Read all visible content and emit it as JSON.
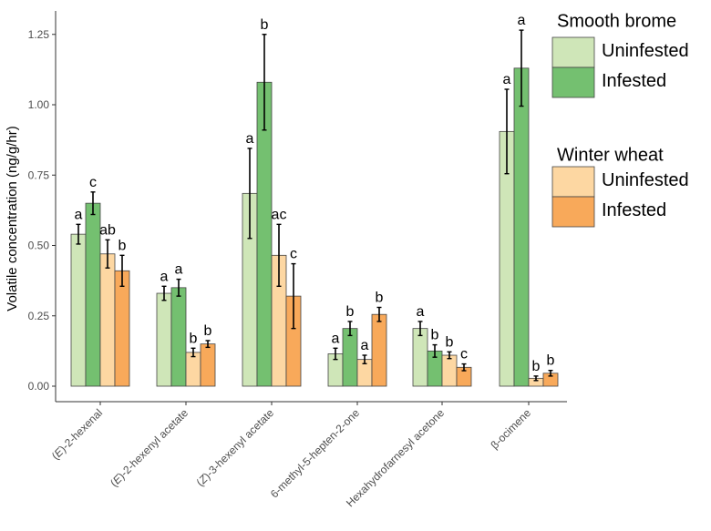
{
  "chart_data": {
    "type": "bar",
    "title": "",
    "xlabel": "",
    "ylabel": "Volatile concentration (ng/g/hr)",
    "ylim": [
      -0.06,
      1.35
    ],
    "yticks": [
      0.0,
      0.25,
      0.5,
      0.75,
      1.0,
      1.25
    ],
    "ytick_labels": [
      "0.00",
      "0.25",
      "0.50",
      "0.75",
      "1.00",
      "1.25"
    ],
    "grid": false,
    "categories": [
      {
        "prefix": "(",
        "italic": "E",
        "suffix": ")-2-hexenal"
      },
      {
        "prefix": "(",
        "italic": "E",
        "suffix": ")-2-hexenyl acetate"
      },
      {
        "prefix": "(",
        "italic": "Z",
        "suffix": ")-3-hexenyl acetate"
      },
      {
        "prefix": "",
        "italic": "",
        "suffix": "6-methyl-5-hepten-2-one"
      },
      {
        "prefix": "",
        "italic": "",
        "suffix": "Hexahydrofarnesyl acetone"
      },
      {
        "prefix": "",
        "italic": "",
        "suffix": "β-ocimene"
      }
    ],
    "series": [
      {
        "name": "Smooth brome Uninfested",
        "color": "#cfe6b8",
        "values": [
          0.54,
          0.33,
          0.685,
          0.115,
          0.205,
          0.905
        ],
        "errors": [
          0.035,
          0.025,
          0.16,
          0.02,
          0.025,
          0.15
        ],
        "letters": [
          "a",
          "a",
          "a",
          "a",
          "a",
          "a"
        ]
      },
      {
        "name": "Smooth brome Infested",
        "color": "#74c070",
        "values": [
          0.65,
          0.35,
          1.08,
          0.205,
          0.125,
          1.13
        ],
        "errors": [
          0.04,
          0.03,
          0.17,
          0.025,
          0.022,
          0.135
        ],
        "letters": [
          "c",
          "a",
          "b",
          "b",
          "b",
          "a"
        ]
      },
      {
        "name": "Winter wheat Uninfested",
        "color": "#fdd7a2",
        "values": [
          0.47,
          0.12,
          0.465,
          0.095,
          0.11,
          0.028
        ],
        "errors": [
          0.05,
          0.015,
          0.11,
          0.015,
          0.012,
          0.008
        ],
        "letters": [
          "ab",
          "b",
          "ac",
          "a",
          "b",
          "b"
        ]
      },
      {
        "name": "Winter wheat Infested",
        "color": "#f8a95a",
        "values": [
          0.41,
          0.15,
          0.32,
          0.255,
          0.067,
          0.046
        ],
        "errors": [
          0.055,
          0.012,
          0.115,
          0.025,
          0.012,
          0.01
        ],
        "letters": [
          "b",
          "b",
          "c",
          "b",
          "c",
          "b"
        ]
      }
    ],
    "legend": {
      "position": "right",
      "groups": [
        {
          "title": "Smooth brome",
          "items": [
            {
              "label": "Uninfested",
              "color": "#cfe6b8"
            },
            {
              "label": "Infested",
              "color": "#74c070"
            }
          ]
        },
        {
          "title": "Winter wheat",
          "items": [
            {
              "label": "Uninfested",
              "color": "#fdd7a2"
            },
            {
              "label": "Infested",
              "color": "#f8a95a"
            }
          ]
        }
      ]
    }
  }
}
